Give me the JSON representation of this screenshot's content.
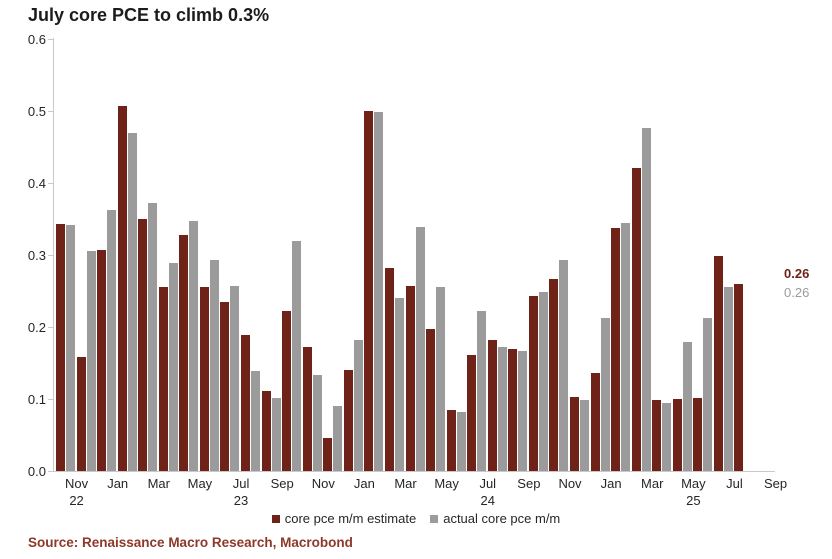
{
  "title": "July core PCE to climb 0.3%",
  "source": "Source: Renaissance Macro Research, Macrobond",
  "colors": {
    "estimate": "#6f2318",
    "actual": "#9b9b9b",
    "axis": "#c9c9c9",
    "text": "#262626",
    "title_text": "#1c1c1c",
    "source_text": "#8e382a"
  },
  "legend": {
    "items": [
      {
        "label": "core pce m/m estimate",
        "color": "#6f2318"
      },
      {
        "label": "actual core pce m/m",
        "color": "#9b9b9b"
      }
    ]
  },
  "annotations": {
    "estimate_latest": "0.26",
    "actual_latest": "0.26"
  },
  "chart_data": {
    "type": "bar",
    "title": "July core PCE to climb 0.3%",
    "xlabel": "",
    "ylabel": "",
    "ylim": [
      0.0,
      0.6
    ],
    "grid": false,
    "legend_position": "bottom",
    "y_ticks": [
      "0.0",
      "0.1",
      "0.2",
      "0.3",
      "0.4",
      "0.5",
      "0.6"
    ],
    "categories": [
      "Oct 2022",
      "Nov 2022",
      "Dec 2022",
      "Jan 2023",
      "Feb 2023",
      "Mar 2023",
      "Apr 2023",
      "May 2023",
      "Jun 2023",
      "Jul 2023",
      "Aug 2023",
      "Sep 2023",
      "Oct 2023",
      "Nov 2023",
      "Dec 2023",
      "Jan 2024",
      "Feb 2024",
      "Mar 2024",
      "Apr 2024",
      "May 2024",
      "Jun 2024",
      "Jul 2024",
      "Aug 2024",
      "Sep 2024",
      "Oct 2024",
      "Nov 2024",
      "Dec 2024",
      "Jan 2025",
      "Feb 2025",
      "Mar 2025",
      "Apr 2025",
      "May 2025",
      "Jun 2025",
      "Jul 2025"
    ],
    "series": [
      {
        "name": "core pce m/m estimate",
        "color": "#6f2318",
        "values": [
          0.343,
          0.158,
          0.307,
          0.507,
          0.35,
          0.256,
          0.328,
          0.256,
          0.235,
          0.189,
          0.111,
          0.222,
          0.172,
          0.046,
          0.14,
          0.5,
          0.282,
          0.257,
          0.197,
          0.085,
          0.161,
          0.182,
          0.169,
          0.243,
          0.267,
          0.103,
          0.136,
          0.337,
          0.421,
          0.098,
          0.1,
          0.102,
          0.298,
          0.26
        ]
      },
      {
        "name": "actual core pce m/m",
        "color": "#9b9b9b",
        "values": [
          0.341,
          0.306,
          0.363,
          0.47,
          0.372,
          0.289,
          0.347,
          0.293,
          0.257,
          0.139,
          0.102,
          0.319,
          0.133,
          0.09,
          0.182,
          0.498,
          0.24,
          0.339,
          0.256,
          0.082,
          0.222,
          0.172,
          0.166,
          0.248,
          0.293,
          0.098,
          0.213,
          0.345,
          0.476,
          0.094,
          0.179,
          0.213,
          0.256,
          null
        ]
      }
    ],
    "x_ticks": [
      {
        "index": 1,
        "label": "Nov"
      },
      {
        "index": 3,
        "label": "Jan"
      },
      {
        "index": 5,
        "label": "Mar"
      },
      {
        "index": 7,
        "label": "May"
      },
      {
        "index": 9,
        "label": "Jul"
      },
      {
        "index": 11,
        "label": "Sep"
      },
      {
        "index": 13,
        "label": "Nov"
      },
      {
        "index": 15,
        "label": "Jan"
      },
      {
        "index": 17,
        "label": "Mar"
      },
      {
        "index": 19,
        "label": "May"
      },
      {
        "index": 21,
        "label": "Jul"
      },
      {
        "index": 23,
        "label": "Sep"
      },
      {
        "index": 25,
        "label": "Nov"
      },
      {
        "index": 27,
        "label": "Jan"
      },
      {
        "index": 29,
        "label": "Mar"
      },
      {
        "index": 31,
        "label": "May"
      },
      {
        "index": 33,
        "label": "Jul"
      },
      {
        "index": 35,
        "label": "Sep"
      }
    ],
    "year_ticks": [
      {
        "index": 1,
        "label": "22"
      },
      {
        "index": 9,
        "label": "23"
      },
      {
        "index": 21,
        "label": "24"
      },
      {
        "index": 31,
        "label": "25"
      }
    ]
  }
}
